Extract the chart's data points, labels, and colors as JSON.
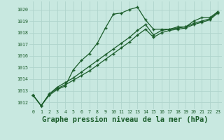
{
  "background_color": "#c8e8e0",
  "grid_color": "#afd4cc",
  "line_color": "#1a5c2a",
  "marker": "+",
  "xlabel": "Graphe pression niveau de la mer (hPa)",
  "xlabel_fontsize": 7.5,
  "ylabel_ticks": [
    1012,
    1013,
    1014,
    1015,
    1016,
    1017,
    1018,
    1019,
    1020
  ],
  "xlim": [
    -0.5,
    23.5
  ],
  "ylim": [
    1011.4,
    1020.7
  ],
  "xticks": [
    0,
    1,
    2,
    3,
    4,
    5,
    6,
    7,
    8,
    9,
    10,
    11,
    12,
    13,
    14,
    15,
    16,
    17,
    18,
    19,
    20,
    21,
    22,
    23
  ],
  "series1": [
    1012.6,
    1011.7,
    1012.6,
    1013.1,
    1013.4,
    1014.8,
    1015.6,
    1016.2,
    1017.1,
    1018.4,
    1019.6,
    1019.7,
    1020.0,
    1020.2,
    1019.1,
    1018.3,
    1018.3,
    1018.3,
    1018.5,
    1018.5,
    1019.0,
    1019.3,
    1019.3,
    1019.8
  ],
  "series2": [
    1012.6,
    1011.7,
    1012.7,
    1013.3,
    1013.7,
    1014.1,
    1014.6,
    1015.1,
    1015.6,
    1016.1,
    1016.6,
    1017.1,
    1017.6,
    1018.2,
    1018.7,
    1017.8,
    1018.2,
    1018.3,
    1018.4,
    1018.5,
    1018.8,
    1019.0,
    1019.2,
    1019.8
  ],
  "series3": [
    1012.6,
    1011.7,
    1012.7,
    1013.2,
    1013.5,
    1013.9,
    1014.3,
    1014.7,
    1015.2,
    1015.7,
    1016.2,
    1016.7,
    1017.2,
    1017.8,
    1018.3,
    1017.6,
    1018.0,
    1018.2,
    1018.3,
    1018.4,
    1018.7,
    1018.9,
    1019.1,
    1019.7
  ]
}
